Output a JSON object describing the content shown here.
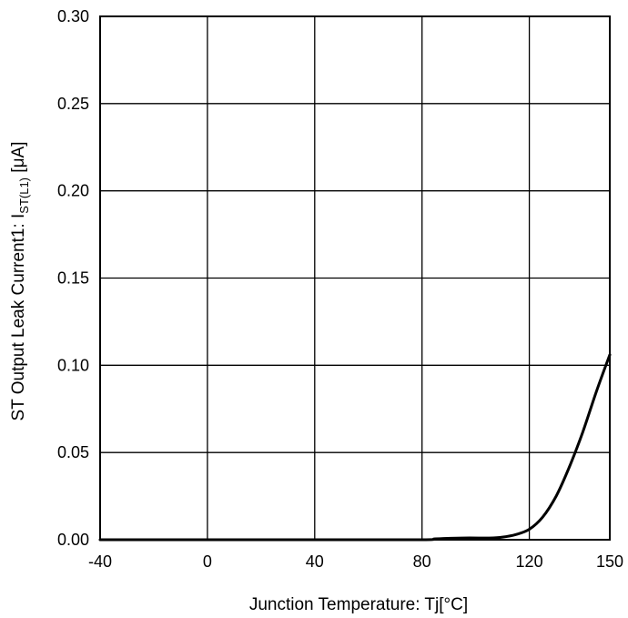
{
  "chart_data": {
    "type": "line",
    "xlabel": "Junction Temperature: Tj[°C]",
    "ylabel": {
      "prefix": "ST Output Leak Current1: I",
      "subscript": "ST(L1)",
      "suffix": " [μA]"
    },
    "xlim": [
      -40,
      150
    ],
    "ylim": [
      0,
      0.3
    ],
    "x_ticks": [
      -40,
      0,
      40,
      80,
      120,
      150
    ],
    "x_tick_labels": [
      "-40",
      "0",
      "40",
      "80",
      "120",
      "150"
    ],
    "y_ticks": [
      0,
      0.05,
      0.1,
      0.15,
      0.2,
      0.25,
      0.3
    ],
    "y_tick_labels": [
      "0.00",
      "0.05",
      "0.10",
      "0.15",
      "0.20",
      "0.25",
      "0.30"
    ],
    "grid": true,
    "legend": "none",
    "series": [
      {
        "color": "#000000",
        "points": [
          [
            -40,
            0.0
          ],
          [
            0,
            0.0
          ],
          [
            40,
            0.0
          ],
          [
            80,
            0.0
          ],
          [
            85,
            0.0005
          ],
          [
            95,
            0.001
          ],
          [
            105,
            0.001
          ],
          [
            110,
            0.0015
          ],
          [
            115,
            0.003
          ],
          [
            120,
            0.006
          ],
          [
            125,
            0.013
          ],
          [
            130,
            0.025
          ],
          [
            135,
            0.042
          ],
          [
            140,
            0.062
          ],
          [
            145,
            0.085
          ],
          [
            150,
            0.106
          ]
        ]
      }
    ]
  }
}
